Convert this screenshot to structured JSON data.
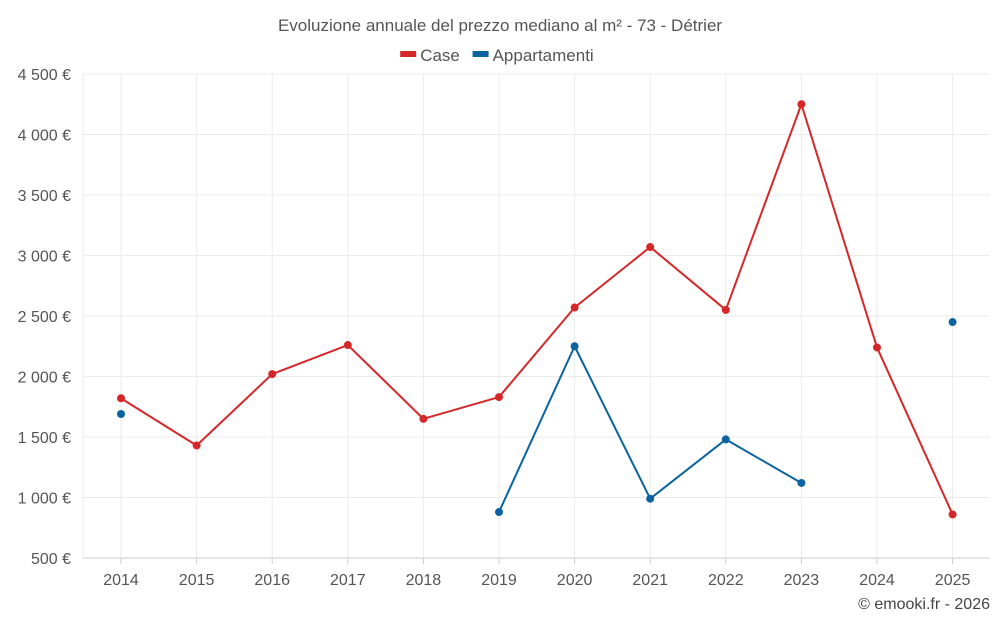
{
  "chart_data": {
    "type": "line",
    "title": "Evoluzione annuale del prezzo mediano al m² - 73 - Détrier",
    "xlabel": "",
    "ylabel": "",
    "categories": [
      "2014",
      "2015",
      "2016",
      "2017",
      "2018",
      "2019",
      "2020",
      "2021",
      "2022",
      "2023",
      "2024",
      "2025"
    ],
    "ylim": [
      500,
      4500
    ],
    "yticks": [
      500,
      1000,
      1500,
      2000,
      2500,
      3000,
      3500,
      4000,
      4500
    ],
    "ytick_labels": [
      "500 €",
      "1 000 €",
      "1 500 €",
      "2 000 €",
      "2 500 €",
      "3 000 €",
      "3 500 €",
      "4 000 €",
      "4 500 €"
    ],
    "grid": true,
    "legend_position": "top-center",
    "series": [
      {
        "name": "Case",
        "color": "#d62728",
        "values": [
          1820,
          1430,
          2020,
          2260,
          1650,
          1830,
          2570,
          3070,
          2550,
          4250,
          2240,
          860
        ]
      },
      {
        "name": "Appartamenti",
        "color": "#0b64a0",
        "values": [
          1690,
          null,
          null,
          null,
          null,
          880,
          2250,
          990,
          1480,
          1120,
          null,
          2450
        ]
      }
    ]
  },
  "credit": "© emooki.fr - 2026"
}
